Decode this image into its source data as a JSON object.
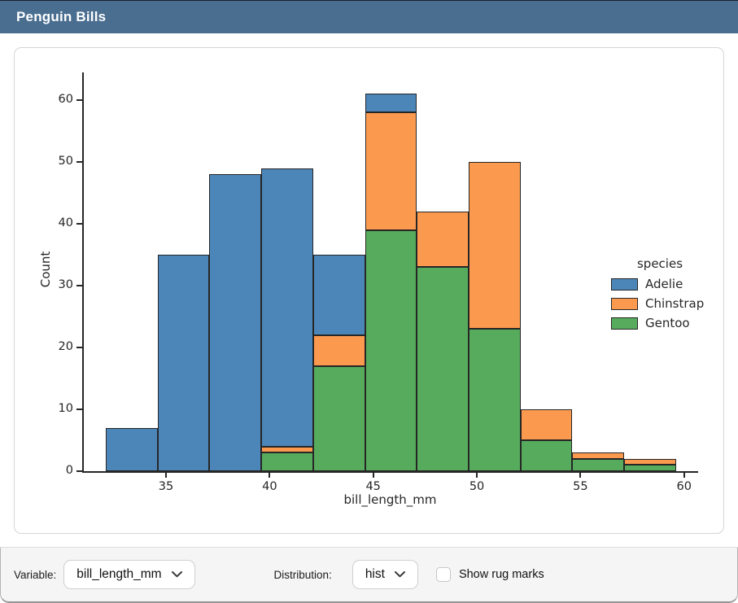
{
  "header": {
    "title": "Penguin Bills"
  },
  "chart_data": {
    "type": "bar",
    "variant": "stacked-histogram",
    "xlabel": "bill_length_mm",
    "ylabel": "Count",
    "bin_edges": [
      32.1,
      34.6,
      37.1,
      39.6,
      42.1,
      44.6,
      47.1,
      49.6,
      52.1,
      54.6,
      57.1,
      59.6
    ],
    "series": [
      {
        "name": "Adelie",
        "color": "#4c86b8",
        "values": [
          7,
          35,
          48,
          45,
          13,
          3,
          0,
          0,
          0,
          0,
          0
        ]
      },
      {
        "name": "Chinstrap",
        "color": "#fb9a4f",
        "values": [
          0,
          0,
          0,
          1,
          5,
          19,
          9,
          27,
          5,
          1,
          1
        ]
      },
      {
        "name": "Gentoo",
        "color": "#57ab5c",
        "values": [
          0,
          0,
          0,
          3,
          17,
          39,
          33,
          23,
          5,
          2,
          1
        ]
      }
    ],
    "stack_bottom_to_top": [
      "Gentoo",
      "Chinstrap",
      "Adelie"
    ],
    "bin_totals": [
      7,
      35,
      48,
      49,
      35,
      61,
      42,
      50,
      10,
      3,
      2
    ],
    "x_ticks": [
      35,
      40,
      45,
      50,
      55,
      60
    ],
    "y_ticks": [
      0,
      10,
      20,
      30,
      40,
      50,
      60
    ],
    "xlim": [
      31.0,
      60.7
    ],
    "ylim": [
      0,
      64.5
    ],
    "grid": false,
    "bar_edge_color": "#262626",
    "legend": {
      "title": "species",
      "entries": [
        "Adelie",
        "Chinstrap",
        "Gentoo"
      ],
      "position": "center-right"
    }
  },
  "footer": {
    "variable_label": "Variable:",
    "variable_value": "bill_length_mm",
    "distribution_label": "Distribution:",
    "distribution_value": "hist",
    "rug_label": "Show rug marks",
    "rug_checked": false
  },
  "colors": {
    "header_bg": "#4a6e90",
    "header_text": "#ffffff",
    "footer_bg": "#f5f5f6"
  }
}
